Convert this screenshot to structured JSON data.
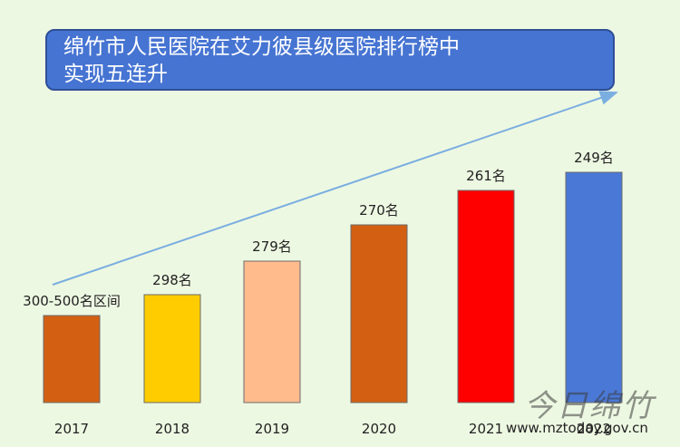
{
  "title_lines": [
    "绵竹市人民医院在艾力彼县级医院排行榜中",
    "实现五连升"
  ],
  "watermark": {
    "logo_text": "今日绵竹",
    "url": "www.mztoday.gov.cn"
  },
  "chart_data": {
    "type": "bar",
    "title": "绵竹市人民医院在艾力彼县级医院排行榜中实现五连升",
    "categories": [
      "2017",
      "2018",
      "2019",
      "2020",
      "2021",
      "2022"
    ],
    "value_labels": [
      "300-500名区间",
      "298名",
      "279名",
      "270名",
      "261名",
      "249名"
    ],
    "colors": [
      "#d35f12",
      "#ffcc00",
      "#ffbb8c",
      "#d35f12",
      "#ff0000",
      "#4a78d6"
    ],
    "trend_arrow": true,
    "grid": false,
    "legend": "none"
  }
}
